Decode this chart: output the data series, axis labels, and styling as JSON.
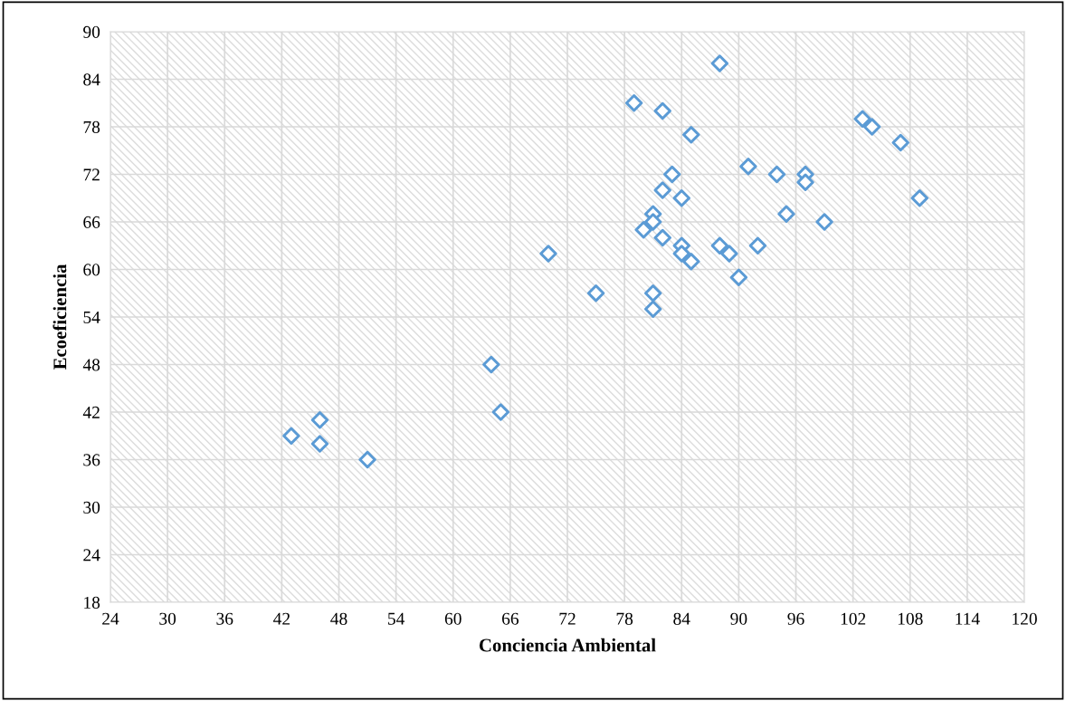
{
  "chart_data": {
    "type": "scatter",
    "xlabel": "Conciencia Ambiental",
    "ylabel": "Ecoeficiencia",
    "series": [
      {
        "color": "#5b9bd5",
        "x": [
          88,
          79,
          82,
          85,
          103,
          104,
          107,
          91,
          94,
          97,
          97,
          83,
          82,
          84,
          109,
          81,
          95,
          81,
          99,
          80,
          82,
          84,
          84,
          85,
          88,
          89,
          92,
          90,
          70,
          75,
          81,
          81,
          64,
          65,
          46,
          43,
          46,
          51
        ],
        "values": [
          86,
          81,
          80,
          77,
          79,
          78,
          76,
          73,
          72,
          72,
          71,
          72,
          70,
          69,
          69,
          67,
          67,
          66,
          66,
          65,
          64,
          63,
          62,
          61,
          63,
          62,
          63,
          59,
          62,
          57,
          57,
          55,
          48,
          42,
          41,
          39,
          38,
          36
        ]
      }
    ],
    "xlim": [
      24,
      120
    ],
    "xticks": [
      24,
      30,
      36,
      42,
      48,
      54,
      60,
      66,
      72,
      78,
      84,
      90,
      96,
      102,
      108,
      114,
      120
    ],
    "ylim": [
      18,
      90
    ],
    "yticks": [
      18,
      24,
      30,
      36,
      42,
      48,
      54,
      60,
      66,
      72,
      78,
      84,
      90
    ],
    "grid": true,
    "marker": "diamond"
  }
}
